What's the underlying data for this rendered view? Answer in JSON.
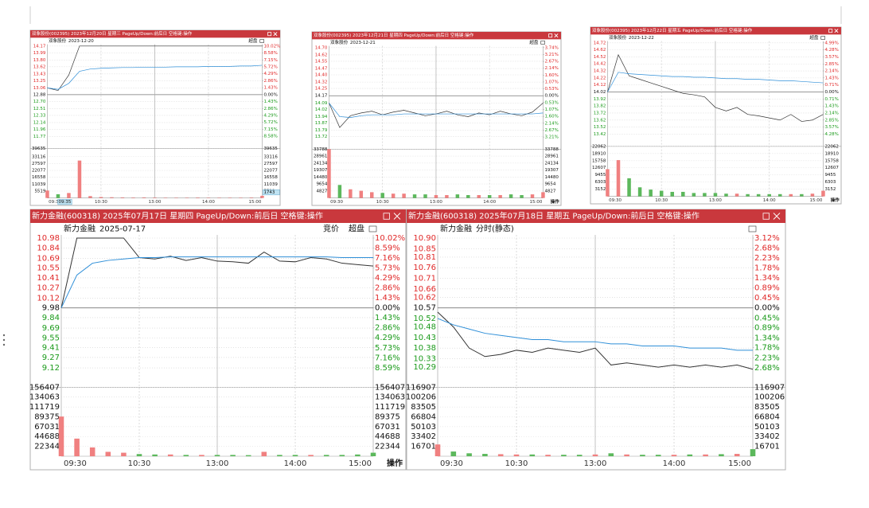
{
  "chart_data": [
    {
      "type": "intraday",
      "title": "双象股份(002395) 2023年12月20日 星期三 PageUp/Down:前后日 空格键:操作",
      "name": "双象股份",
      "subtitle": "2023-12-20",
      "buttons": [
        "超盘"
      ],
      "xlim": [
        0,
        240
      ],
      "xticks": [
        {
          "value": 0,
          "label": "09:30"
        },
        {
          "value": 60,
          "label": "10:30"
        },
        {
          "value": 120,
          "label": "13:00"
        },
        {
          "value": 180,
          "label": "14:00"
        },
        {
          "value": 240,
          "label": "15:00"
        }
      ],
      "ylim": [
        11.59,
        14.17
      ],
      "yticks": [
        14.17,
        13.99,
        {
          "value": 13.8,
          "label": "13.80"
        },
        13.62,
        13.43,
        13.25,
        13.06,
        12.88,
        {
          "value": 12.7,
          "label": "12.70"
        },
        12.51,
        12.33,
        12.14,
        11.96,
        11.77
      ],
      "y2lim": [
        -10.02,
        10.02
      ],
      "y2ticks": [
        {
          "value": 10.02,
          "label": "10.02%"
        },
        {
          "value": 8.58,
          "label": "8.58%"
        },
        {
          "value": 7.15,
          "label": "7.15%"
        },
        {
          "value": 5.72,
          "label": "5.72%"
        },
        {
          "value": 4.29,
          "label": "4.29%"
        },
        {
          "value": 2.86,
          "label": "2.86%"
        },
        {
          "value": 1.43,
          "label": "1.43%"
        },
        {
          "value": 0,
          "label": "0.00%"
        },
        {
          "value": -1.43,
          "label": "1.43%"
        },
        {
          "value": -2.86,
          "label": "2.86%"
        },
        {
          "value": -4.29,
          "label": "4.29%"
        },
        {
          "value": -5.72,
          "label": "5.72%"
        },
        {
          "value": -7.15,
          "label": "7.15%"
        },
        {
          "value": -8.58,
          "label": "8.58%"
        }
      ],
      "x": [
        0,
        12,
        24,
        36,
        48,
        60,
        72,
        84,
        96,
        108,
        120,
        132,
        144,
        156,
        168,
        180,
        192,
        204,
        216,
        228,
        240
      ],
      "series": [
        {
          "color": "#333333",
          "values": [
            13.06,
            12.99,
            13.4,
            14.17,
            14.17,
            14.17,
            14.17,
            14.17,
            14.17,
            14.17,
            14.17,
            14.17,
            14.17,
            14.17,
            14.17,
            14.17,
            14.17,
            14.17,
            14.17,
            14.17,
            14.17
          ]
        },
        {
          "color": "#2f8fd8",
          "values": [
            13.06,
            13.02,
            13.18,
            13.5,
            13.56,
            13.58,
            13.59,
            13.6,
            13.6,
            13.61,
            13.61,
            13.61,
            13.62,
            13.62,
            13.62,
            13.63,
            13.63,
            13.63,
            13.64,
            13.64,
            13.66
          ]
        }
      ],
      "volume": {
        "ylim": [
          0,
          39635
        ],
        "yticks": [
          39635,
          33116,
          27597,
          22077,
          16558,
          11039,
          5519
        ],
        "values": [
          6000,
          3000,
          4000,
          30000,
          1500,
          800,
          600,
          500,
          400,
          500,
          400,
          300,
          300,
          300,
          400,
          300,
          300,
          300,
          300,
          400,
          1743
        ]
      },
      "cursor": {
        "time": "09:35",
        "value": 1743
      }
    },
    {
      "type": "intraday",
      "title": "双象股份(002395) 2023年12月21日 星期四 PageUp/Down:前后日 空格键:操作",
      "name": "双象股份",
      "subtitle": "2023-12-21",
      "buttons": [
        "超盘"
      ],
      "action": "操作",
      "xlim": [
        0,
        240
      ],
      "xticks": [
        {
          "value": 0,
          "label": "09:30"
        },
        {
          "value": 60,
          "label": "10:30"
        },
        {
          "value": 120,
          "label": "13:00"
        },
        {
          "value": 180,
          "label": "14:00"
        },
        {
          "value": 240,
          "label": "15:00"
        }
      ],
      "ylim": [
        13.64,
        14.7
      ],
      "yticks": [
        {
          "value": 14.7,
          "label": "14.70"
        },
        14.62,
        14.55,
        14.47,
        {
          "value": 14.4,
          "label": "14.40"
        },
        14.32,
        14.25,
        14.17,
        14.09,
        14.02,
        13.94,
        13.87,
        13.79,
        13.72
      ],
      "y2lim": [
        -3.74,
        3.74
      ],
      "y2ticks": [
        {
          "value": 3.74,
          "label": "3.74%"
        },
        {
          "value": 3.21,
          "label": "3.21%"
        },
        {
          "value": 2.67,
          "label": "2.67%"
        },
        {
          "value": 2.14,
          "label": "2.14%"
        },
        {
          "value": 1.6,
          "label": "1.60%"
        },
        {
          "value": 1.07,
          "label": "1.07%"
        },
        {
          "value": 0.53,
          "label": "0.53%"
        },
        {
          "value": 0,
          "label": "0.00%"
        },
        {
          "value": -0.53,
          "label": "0.53%"
        },
        {
          "value": -1.07,
          "label": "1.07%"
        },
        {
          "value": -1.6,
          "label": "1.60%"
        },
        {
          "value": -2.14,
          "label": "2.14%"
        },
        {
          "value": -2.67,
          "label": "2.67%"
        },
        {
          "value": -3.21,
          "label": "3.21%"
        }
      ],
      "x": [
        0,
        12,
        24,
        36,
        48,
        60,
        72,
        84,
        96,
        108,
        120,
        132,
        144,
        156,
        168,
        180,
        192,
        204,
        216,
        228,
        240
      ],
      "series": [
        {
          "color": "#333333",
          "values": [
            14.09,
            13.82,
            13.95,
            13.98,
            14.0,
            13.96,
            13.99,
            14.01,
            13.98,
            13.95,
            13.97,
            14.0,
            13.96,
            13.94,
            13.98,
            13.96,
            14.0,
            13.97,
            13.95,
            13.99,
            14.09
          ]
        },
        {
          "color": "#2f8fd8",
          "values": [
            14.09,
            13.94,
            13.93,
            13.95,
            13.96,
            13.96,
            13.96,
            13.97,
            13.97,
            13.97,
            13.97,
            13.97,
            13.97,
            13.97,
            13.97,
            13.97,
            13.97,
            13.97,
            13.97,
            13.97,
            13.98
          ]
        }
      ],
      "volume": {
        "ylim": [
          0,
          33788
        ],
        "yticks": [
          33788,
          28961,
          24134,
          19307,
          14480,
          9654,
          4827
        ],
        "values": [
          33788,
          9000,
          6000,
          5000,
          4000,
          3500,
          3000,
          3000,
          2500,
          2500,
          2000,
          2000,
          2500,
          2000,
          2000,
          2000,
          2000,
          2500,
          2000,
          2500,
          4000
        ]
      }
    },
    {
      "type": "intraday",
      "title": "双象股份(002395) 2023年12月22日 星期五 PageUp/Down:前后日 空格键:操作",
      "name": "双象股份",
      "subtitle": "2023-12-22",
      "buttons": [
        "超盘"
      ],
      "action": "操作",
      "xlim": [
        0,
        240
      ],
      "xticks": [
        {
          "value": 0,
          "label": "09:30"
        },
        {
          "value": 60,
          "label": "10:30"
        },
        {
          "value": 120,
          "label": "13:00"
        },
        {
          "value": 180,
          "label": "14:00"
        },
        {
          "value": 240,
          "label": "15:00"
        }
      ],
      "ylim": [
        13.32,
        14.72
      ],
      "yticks": [
        14.72,
        14.62,
        14.52,
        14.42,
        14.32,
        14.22,
        14.12,
        14.02,
        13.92,
        13.82,
        13.72,
        13.62,
        13.52,
        13.42
      ],
      "y2lim": [
        -4.99,
        4.99
      ],
      "y2ticks": [
        {
          "value": 4.99,
          "label": "4.99%"
        },
        {
          "value": 4.28,
          "label": "4.28%"
        },
        {
          "value": 3.57,
          "label": "3.57%"
        },
        {
          "value": 2.85,
          "label": "2.85%"
        },
        {
          "value": 2.14,
          "label": "2.14%"
        },
        {
          "value": 1.43,
          "label": "1.43%"
        },
        {
          "value": 0.71,
          "label": "0.71%"
        },
        {
          "value": 0,
          "label": "0.00%"
        },
        {
          "value": -0.71,
          "label": "0.71%"
        },
        {
          "value": -1.43,
          "label": "1.43%"
        },
        {
          "value": -2.14,
          "label": "2.14%"
        },
        {
          "value": -2.85,
          "label": "2.85%"
        },
        {
          "value": -3.57,
          "label": "3.57%"
        },
        {
          "value": -4.28,
          "label": "4.28%"
        }
      ],
      "x": [
        0,
        12,
        24,
        36,
        48,
        60,
        72,
        84,
        96,
        108,
        120,
        132,
        144,
        156,
        168,
        180,
        192,
        204,
        216,
        228,
        240
      ],
      "series": [
        {
          "color": "#333333",
          "values": [
            14.02,
            14.55,
            14.25,
            14.2,
            14.15,
            14.1,
            14.05,
            14.0,
            13.98,
            13.95,
            13.8,
            13.75,
            13.8,
            13.7,
            13.68,
            13.65,
            13.62,
            13.7,
            13.6,
            13.62,
            13.7
          ]
        },
        {
          "color": "#2f8fd8",
          "values": [
            14.02,
            14.3,
            14.28,
            14.27,
            14.26,
            14.25,
            14.24,
            14.24,
            14.23,
            14.23,
            14.22,
            14.21,
            14.21,
            14.2,
            14.2,
            14.19,
            14.18,
            14.18,
            14.17,
            14.16,
            14.15
          ]
        }
      ],
      "volume": {
        "ylim": [
          0,
          22062
        ],
        "yticks": [
          22062,
          18910,
          15758,
          12607,
          9455,
          6303,
          3152
        ],
        "values": [
          12000,
          16000,
          8000,
          4000,
          3000,
          2500,
          2000,
          2000,
          1500,
          1500,
          1500,
          1200,
          1200,
          1000,
          1000,
          1000,
          1000,
          1000,
          1000,
          1200,
          2500
        ]
      }
    },
    {
      "type": "intraday",
      "title": "新力金融(600318) 2025年07月17日 星期四 PageUp/Down:前后日 空格键:操作",
      "name": "新力金融",
      "subtitle": "2025-07-17",
      "buttons": [
        "竞价",
        "超盘"
      ],
      "action": "操作",
      "xlim": [
        0,
        240
      ],
      "xticks": [
        {
          "value": 0,
          "label": "09:30"
        },
        {
          "value": 60,
          "label": "10:30"
        },
        {
          "value": 120,
          "label": "13:00"
        },
        {
          "value": 180,
          "label": "14:00"
        },
        {
          "value": 240,
          "label": "15:00"
        }
      ],
      "ylim": [
        8.98,
        10.98
      ],
      "yticks": [
        10.98,
        10.84,
        10.69,
        10.55,
        10.41,
        10.27,
        10.12,
        9.98,
        9.84,
        9.69,
        9.55,
        9.41,
        9.27,
        9.12
      ],
      "y2lim": [
        -10.02,
        10.02
      ],
      "y2ticks": [
        {
          "value": 10.02,
          "label": "10.02%"
        },
        {
          "value": 8.59,
          "label": "8.59%"
        },
        {
          "value": 7.16,
          "label": "7.16%"
        },
        {
          "value": 5.73,
          "label": "5.73%"
        },
        {
          "value": 4.29,
          "label": "4.29%"
        },
        {
          "value": 2.86,
          "label": "2.86%"
        },
        {
          "value": 1.43,
          "label": "1.43%"
        },
        {
          "value": 0,
          "label": "0.00%"
        },
        {
          "value": -1.43,
          "label": "1.43%"
        },
        {
          "value": -2.86,
          "label": "2.86%"
        },
        {
          "value": -4.29,
          "label": "4.29%"
        },
        {
          "value": -5.73,
          "label": "5.73%"
        },
        {
          "value": -7.16,
          "label": "7.16%"
        },
        {
          "value": -8.59,
          "label": "8.59%"
        }
      ],
      "x": [
        0,
        12,
        24,
        36,
        48,
        60,
        72,
        84,
        96,
        108,
        120,
        132,
        144,
        156,
        168,
        180,
        192,
        204,
        216,
        228,
        240
      ],
      "series": [
        {
          "color": "#333333",
          "values": [
            9.98,
            10.98,
            10.98,
            10.98,
            10.98,
            10.7,
            10.68,
            10.72,
            10.66,
            10.7,
            10.65,
            10.64,
            10.62,
            10.78,
            10.65,
            10.64,
            10.7,
            10.68,
            10.62,
            10.6,
            10.58
          ]
        },
        {
          "color": "#2f8fd8",
          "values": [
            9.98,
            10.45,
            10.62,
            10.66,
            10.68,
            10.7,
            10.7,
            10.71,
            10.71,
            10.71,
            10.71,
            10.71,
            10.71,
            10.71,
            10.71,
            10.71,
            10.71,
            10.71,
            10.7,
            10.7,
            10.7
          ]
        }
      ],
      "volume": {
        "ylim": [
          0,
          156407
        ],
        "yticks": [
          156407,
          134063,
          111719,
          89375,
          67031,
          44688,
          22344
        ],
        "values": [
          90000,
          40000,
          20000,
          10000,
          8000,
          5000,
          4000,
          4000,
          3000,
          3000,
          3000,
          3000,
          2500,
          10000,
          3000,
          3000,
          3000,
          3000,
          3000,
          4000,
          8000
        ]
      }
    },
    {
      "type": "intraday",
      "title": "新力金融(600318) 2025年07月18日 星期五 PageUp/Down:前后日 空格键:操作",
      "name": "新力金融",
      "subtitle": "分时(静态)",
      "xlim": [
        0,
        240
      ],
      "xticks": [
        {
          "value": 0,
          "label": "09:30"
        },
        {
          "value": 60,
          "label": "10:30"
        },
        {
          "value": 120,
          "label": "13:00"
        },
        {
          "value": 180,
          "label": "14:00"
        },
        {
          "value": 240,
          "label": "15:00"
        }
      ],
      "ylim": [
        10.24,
        10.9
      ],
      "yticks": [
        {
          "value": 10.9,
          "label": "10.90"
        },
        10.85,
        10.81,
        10.76,
        10.71,
        10.66,
        10.62,
        10.57,
        10.52,
        10.48,
        10.43,
        10.38,
        10.33,
        10.29
      ],
      "y2lim": [
        -3.12,
        3.12
      ],
      "y2ticks": [
        {
          "value": 3.12,
          "label": "3.12%"
        },
        {
          "value": 2.68,
          "label": "2.68%"
        },
        {
          "value": 2.23,
          "label": "2.23%"
        },
        {
          "value": 1.78,
          "label": "1.78%"
        },
        {
          "value": 1.34,
          "label": "1.34%"
        },
        {
          "value": 0.89,
          "label": "0.89%"
        },
        {
          "value": 0.45,
          "label": "0.45%"
        },
        {
          "value": 0,
          "label": "0.00%"
        },
        {
          "value": -0.45,
          "label": "0.45%"
        },
        {
          "value": -0.89,
          "label": "0.89%"
        },
        {
          "value": -1.34,
          "label": "1.34%"
        },
        {
          "value": -1.78,
          "label": "1.78%"
        },
        {
          "value": -2.23,
          "label": "2.23%"
        },
        {
          "value": -2.68,
          "label": "2.68%"
        }
      ],
      "x": [
        0,
        12,
        24,
        36,
        48,
        60,
        72,
        84,
        96,
        108,
        120,
        132,
        144,
        156,
        168,
        180,
        192,
        204,
        216,
        228,
        240
      ],
      "series": [
        {
          "color": "#333333",
          "values": [
            10.55,
            10.48,
            10.38,
            10.34,
            10.35,
            10.37,
            10.36,
            10.38,
            10.37,
            10.36,
            10.38,
            10.3,
            10.31,
            10.3,
            10.29,
            10.3,
            10.29,
            10.3,
            10.29,
            10.3,
            10.28
          ]
        },
        {
          "color": "#2f8fd8",
          "values": [
            10.52,
            10.49,
            10.47,
            10.45,
            10.44,
            10.43,
            10.42,
            10.42,
            10.41,
            10.41,
            10.41,
            10.4,
            10.4,
            10.39,
            10.39,
            10.39,
            10.38,
            10.38,
            10.38,
            10.37,
            10.37
          ]
        }
      ],
      "volume": {
        "ylim": [
          0,
          116907
        ],
        "yticks": [
          116907,
          100206,
          83505,
          66804,
          50103,
          33402,
          16701
        ],
        "values": [
          20000,
          8000,
          5000,
          4000,
          3500,
          3000,
          3000,
          2500,
          2500,
          2500,
          3000,
          5000,
          3000,
          2500,
          2500,
          2500,
          3000,
          3000,
          3500,
          4000,
          12000
        ]
      }
    }
  ]
}
